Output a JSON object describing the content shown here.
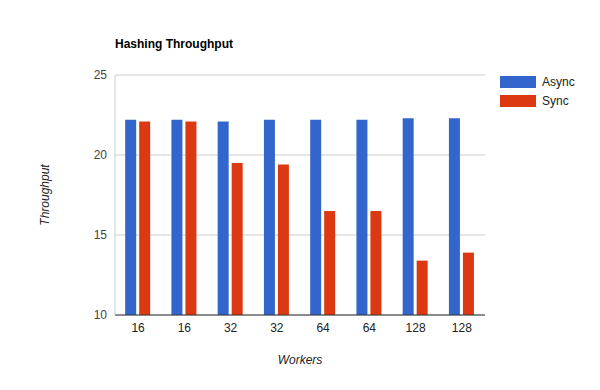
{
  "chart_data": {
    "type": "bar",
    "title": "Hashing Throughput",
    "x_label": "Workers",
    "y_label": "Throughput",
    "categories": [
      "16",
      "16",
      "32",
      "32",
      "64",
      "64",
      "128",
      "128"
    ],
    "series": [
      {
        "name": "Async",
        "color": "#3366cc",
        "values": [
          22.2,
          22.2,
          22.1,
          22.2,
          22.2,
          22.2,
          22.3,
          22.3
        ]
      },
      {
        "name": "Sync",
        "color": "#dc3912",
        "values": [
          22.1,
          22.1,
          19.5,
          19.4,
          16.5,
          16.5,
          13.4,
          13.9
        ]
      }
    ],
    "ylim": [
      10,
      25
    ],
    "yticks": [
      10,
      15,
      20,
      25
    ],
    "grid": true,
    "legend": "right"
  }
}
